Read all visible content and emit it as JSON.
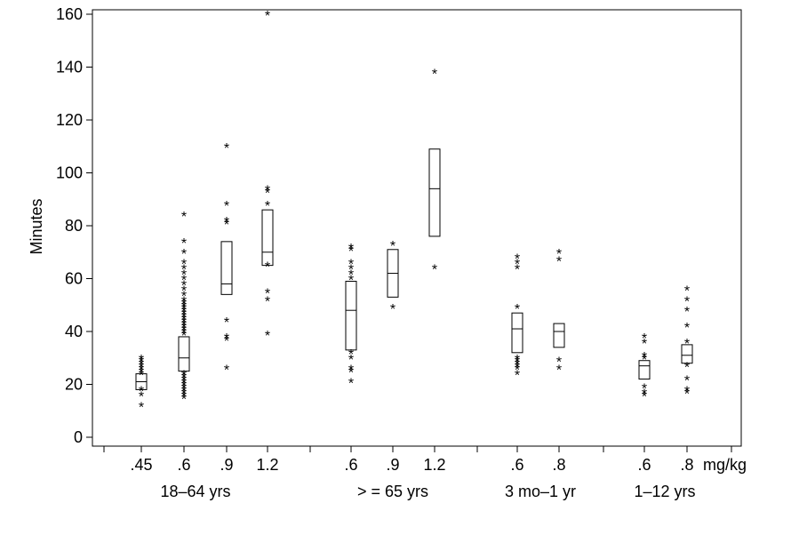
{
  "chart_data": {
    "type": "box",
    "ylabel": "Minutes",
    "ylim": [
      0,
      160
    ],
    "yticks": [
      0,
      20,
      40,
      60,
      80,
      100,
      120,
      140,
      160
    ],
    "x_unit": "mg/kg",
    "grid": false,
    "groups": [
      {
        "label": "18–64 yrs",
        "doses": [
          {
            "label": ".45",
            "q1": 18,
            "median": 21,
            "q3": 24,
            "outliers": [
              12,
              16,
              18,
              24,
              25,
              26,
              27,
              28,
              29,
              30
            ]
          },
          {
            "label": ".6",
            "q1": 25,
            "median": 30,
            "q3": 38,
            "outliers": [
              15,
              16,
              17,
              18,
              19,
              20,
              21,
              22,
              23,
              24,
              39,
              40,
              41,
              42,
              43,
              44,
              45,
              46,
              47,
              48,
              49,
              50,
              51,
              52,
              54,
              56,
              58,
              60,
              62,
              64,
              66,
              70,
              74,
              84
            ]
          },
          {
            "label": ".9",
            "q1": 54,
            "median": 58,
            "q3": 74,
            "outliers": [
              26,
              37,
              38,
              44,
              81,
              82,
              88,
              110
            ]
          },
          {
            "label": "1.2",
            "q1": 65,
            "median": 70,
            "q3": 86,
            "outliers": [
              39,
              52,
              55,
              65,
              88,
              93,
              94,
              160
            ]
          }
        ]
      },
      {
        "label": "> = 65 yrs",
        "doses": [
          {
            "label": ".6",
            "q1": 33,
            "median": 48,
            "q3": 59,
            "outliers": [
              21,
              25,
              26,
              30,
              32,
              60,
              62,
              64,
              66,
              71,
              72
            ]
          },
          {
            "label": ".9",
            "q1": 53,
            "median": 62,
            "q3": 71,
            "outliers": [
              49,
              73
            ]
          },
          {
            "label": "1.2",
            "q1": 76,
            "median": 94,
            "q3": 109,
            "outliers": [
              64,
              138
            ]
          }
        ]
      },
      {
        "label": "3 mo–1 yr",
        "doses": [
          {
            "label": ".6",
            "q1": 32,
            "median": 41,
            "q3": 47,
            "outliers": [
              24,
              26,
              27,
              28,
              29,
              30,
              49,
              64,
              66,
              68
            ]
          },
          {
            "label": ".8",
            "q1": 34,
            "median": 40,
            "q3": 43,
            "outliers": [
              26,
              29,
              67,
              70
            ]
          }
        ]
      },
      {
        "label": "1–12 yrs",
        "doses": [
          {
            "label": ".6",
            "q1": 22,
            "median": 27,
            "q3": 29,
            "outliers": [
              16,
              17,
              19,
              30,
              31,
              36,
              38
            ]
          },
          {
            "label": ".8",
            "q1": 28,
            "median": 31,
            "q3": 35,
            "outliers": [
              17,
              18,
              22,
              27,
              36,
              42,
              48,
              52,
              56
            ]
          }
        ]
      }
    ]
  }
}
